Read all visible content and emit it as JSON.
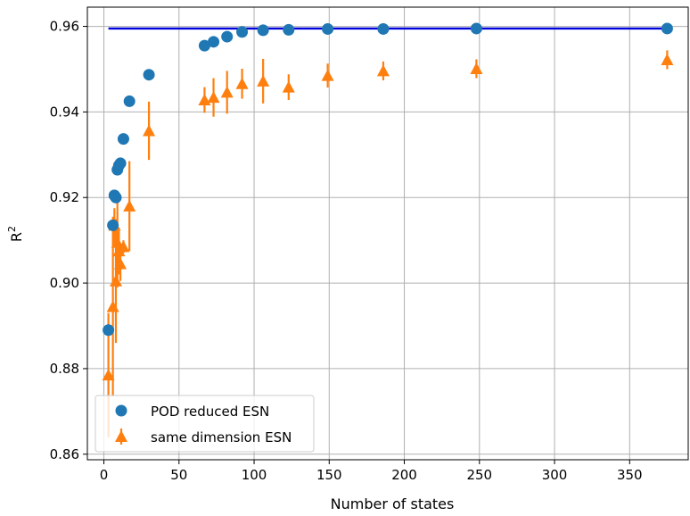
{
  "chart_data": {
    "type": "scatter",
    "title": "",
    "xlabel": "Number of states",
    "ylabel_base": "R",
    "ylabel_sup": "2",
    "xlim": [
      -11,
      389
    ],
    "ylim": [
      0.8587,
      0.9645
    ],
    "x_ticks": [
      0,
      50,
      100,
      150,
      200,
      250,
      300,
      350
    ],
    "y_ticks": [
      0.86,
      0.88,
      0.9,
      0.92,
      0.94,
      0.96
    ],
    "x_tick_labels": [
      "0",
      "50",
      "100",
      "150",
      "200",
      "250",
      "300",
      "350"
    ],
    "y_tick_labels": [
      "0.86",
      "0.88",
      "0.90",
      "0.92",
      "0.94",
      "0.96"
    ],
    "grid": true,
    "legend_position": "lower-left",
    "reference_line": {
      "color": "#0000dd",
      "x_range": [
        3,
        375
      ],
      "y": 0.9595
    },
    "series": [
      {
        "name": "POD reduced ESN",
        "marker": "circle",
        "color": "#1f77b4",
        "points": [
          {
            "x": 3,
            "y": 0.889
          },
          {
            "x": 6,
            "y": 0.9135
          },
          {
            "x": 7,
            "y": 0.9205
          },
          {
            "x": 8,
            "y": 0.92
          },
          {
            "x": 9,
            "y": 0.9265
          },
          {
            "x": 10,
            "y": 0.9275
          },
          {
            "x": 11,
            "y": 0.928
          },
          {
            "x": 13,
            "y": 0.9337
          },
          {
            "x": 17,
            "y": 0.9425
          },
          {
            "x": 30,
            "y": 0.9487
          },
          {
            "x": 67,
            "y": 0.9555
          },
          {
            "x": 73,
            "y": 0.9564
          },
          {
            "x": 82,
            "y": 0.9576
          },
          {
            "x": 92,
            "y": 0.9587
          },
          {
            "x": 106,
            "y": 0.9591
          },
          {
            "x": 123,
            "y": 0.9592
          },
          {
            "x": 149,
            "y": 0.9594
          },
          {
            "x": 186,
            "y": 0.9594
          },
          {
            "x": 248,
            "y": 0.9595
          },
          {
            "x": 375,
            "y": 0.9595
          }
        ]
      },
      {
        "name": "same dimension ESN",
        "marker": "triangle-up",
        "color": "#ff7f0e",
        "points": [
          {
            "x": 3,
            "y": 0.8785,
            "err": 0.0145
          },
          {
            "x": 6,
            "y": 0.8945,
            "err": 0.021
          },
          {
            "x": 7,
            "y": 0.9135,
            "err": 0.004
          },
          {
            "x": 8,
            "y": 0.9005,
            "err": 0.0145
          },
          {
            "x": 9,
            "y": 0.9095,
            "err": 0.0105
          },
          {
            "x": 10,
            "y": 0.9075,
            "err": 0.0055
          },
          {
            "x": 11,
            "y": 0.9045,
            "err": 0.004
          },
          {
            "x": 13,
            "y": 0.9085,
            "err": 0.0015
          },
          {
            "x": 17,
            "y": 0.918,
            "err": 0.0105
          },
          {
            "x": 30,
            "y": 0.9356,
            "err": 0.0068
          },
          {
            "x": 67,
            "y": 0.9428,
            "err": 0.003
          },
          {
            "x": 73,
            "y": 0.9434,
            "err": 0.0045
          },
          {
            "x": 82,
            "y": 0.9446,
            "err": 0.005
          },
          {
            "x": 92,
            "y": 0.9466,
            "err": 0.0035
          },
          {
            "x": 106,
            "y": 0.9472,
            "err": 0.0052
          },
          {
            "x": 123,
            "y": 0.9458,
            "err": 0.003
          },
          {
            "x": 149,
            "y": 0.9485,
            "err": 0.0028
          },
          {
            "x": 186,
            "y": 0.9496,
            "err": 0.0022
          },
          {
            "x": 248,
            "y": 0.9501,
            "err": 0.0022
          },
          {
            "x": 375,
            "y": 0.9522,
            "err": 0.0022
          }
        ]
      }
    ]
  }
}
